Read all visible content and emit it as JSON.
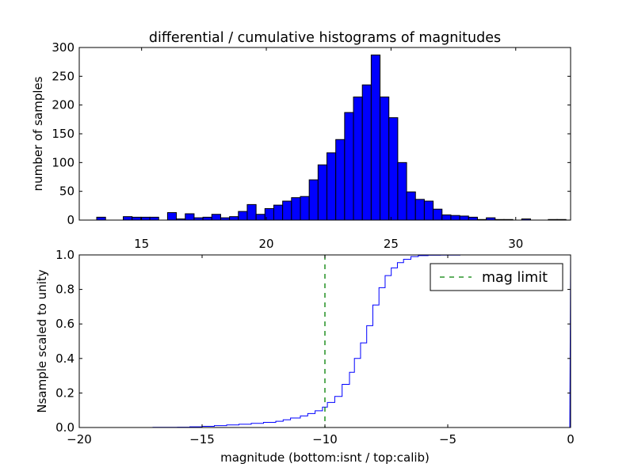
{
  "chart_data": [
    {
      "type": "bar",
      "title": "differential / cumulative histograms of magnitudes",
      "ylabel": "number of samples",
      "xlabel": "",
      "x_ticks": [
        "15",
        "20",
        "25",
        "30"
      ],
      "x_tick_values": [
        15,
        20,
        25,
        30
      ],
      "y_ticks": [
        "0",
        "50",
        "100",
        "150",
        "200",
        "250",
        "300"
      ],
      "y_tick_values": [
        0,
        50,
        100,
        150,
        200,
        250,
        300
      ],
      "xlim": [
        12.5,
        32.2
      ],
      "ylim": [
        0,
        300
      ],
      "bin_start": 13.2,
      "bin_width": 0.355,
      "values": [
        5,
        0,
        0,
        6,
        5,
        5,
        5,
        0,
        13,
        2,
        11,
        4,
        5,
        10,
        4,
        6,
        15,
        27,
        10,
        20,
        26,
        33,
        39,
        41,
        70,
        96,
        117,
        140,
        187,
        214,
        235,
        287,
        214,
        178,
        100,
        49,
        36,
        33,
        19,
        9,
        8,
        7,
        5,
        1,
        4,
        1,
        1,
        0,
        2,
        0,
        0,
        1,
        1
      ],
      "color": "#0000ff",
      "grid": false
    },
    {
      "type": "line",
      "step": true,
      "xlabel": "magnitude (bottom:isnt / top:calib)",
      "ylabel": "Nsample scaled to unity",
      "x_ticks": [
        "−20",
        "−15",
        "−10",
        "−5",
        "0"
      ],
      "x_tick_values": [
        -20,
        -15,
        -10,
        -5,
        0
      ],
      "y_ticks": [
        "0.0",
        "0.2",
        "0.4",
        "0.6",
        "0.8",
        "1.0"
      ],
      "y_tick_values": [
        0,
        0.2,
        0.4,
        0.6,
        0.8,
        1.0
      ],
      "xlim": [
        -20,
        0
      ],
      "ylim": [
        0,
        1.0
      ],
      "series": [
        {
          "color": "#0000ff",
          "x": [
            -19,
            -17,
            -16,
            -15.5,
            -15,
            -14.5,
            -14,
            -13.5,
            -13,
            -12.5,
            -12,
            -11.7,
            -11.4,
            -11,
            -10.7,
            -10.4,
            -10.1,
            -9.9,
            -9.6,
            -9.3,
            -9.0,
            -8.8,
            -8.55,
            -8.3,
            -8.05,
            -7.8,
            -7.55,
            -7.3,
            -7.05,
            -6.8,
            -6.5,
            -6.2,
            -5.8,
            -5.3,
            -4.5,
            -0.05
          ],
          "y": [
            0.0,
            0.001,
            0.002,
            0.004,
            0.007,
            0.011,
            0.015,
            0.019,
            0.024,
            0.03,
            0.036,
            0.045,
            0.055,
            0.067,
            0.081,
            0.097,
            0.118,
            0.145,
            0.18,
            0.25,
            0.32,
            0.4,
            0.49,
            0.59,
            0.71,
            0.81,
            0.88,
            0.925,
            0.955,
            0.975,
            0.99,
            0.996,
            0.998,
            0.999,
            1.0,
            1.0
          ]
        },
        {
          "name": "mag limit",
          "color": "#008000",
          "style": "dashed",
          "x_value": -10
        }
      ],
      "legend_position": "top-right",
      "grid": false
    }
  ]
}
